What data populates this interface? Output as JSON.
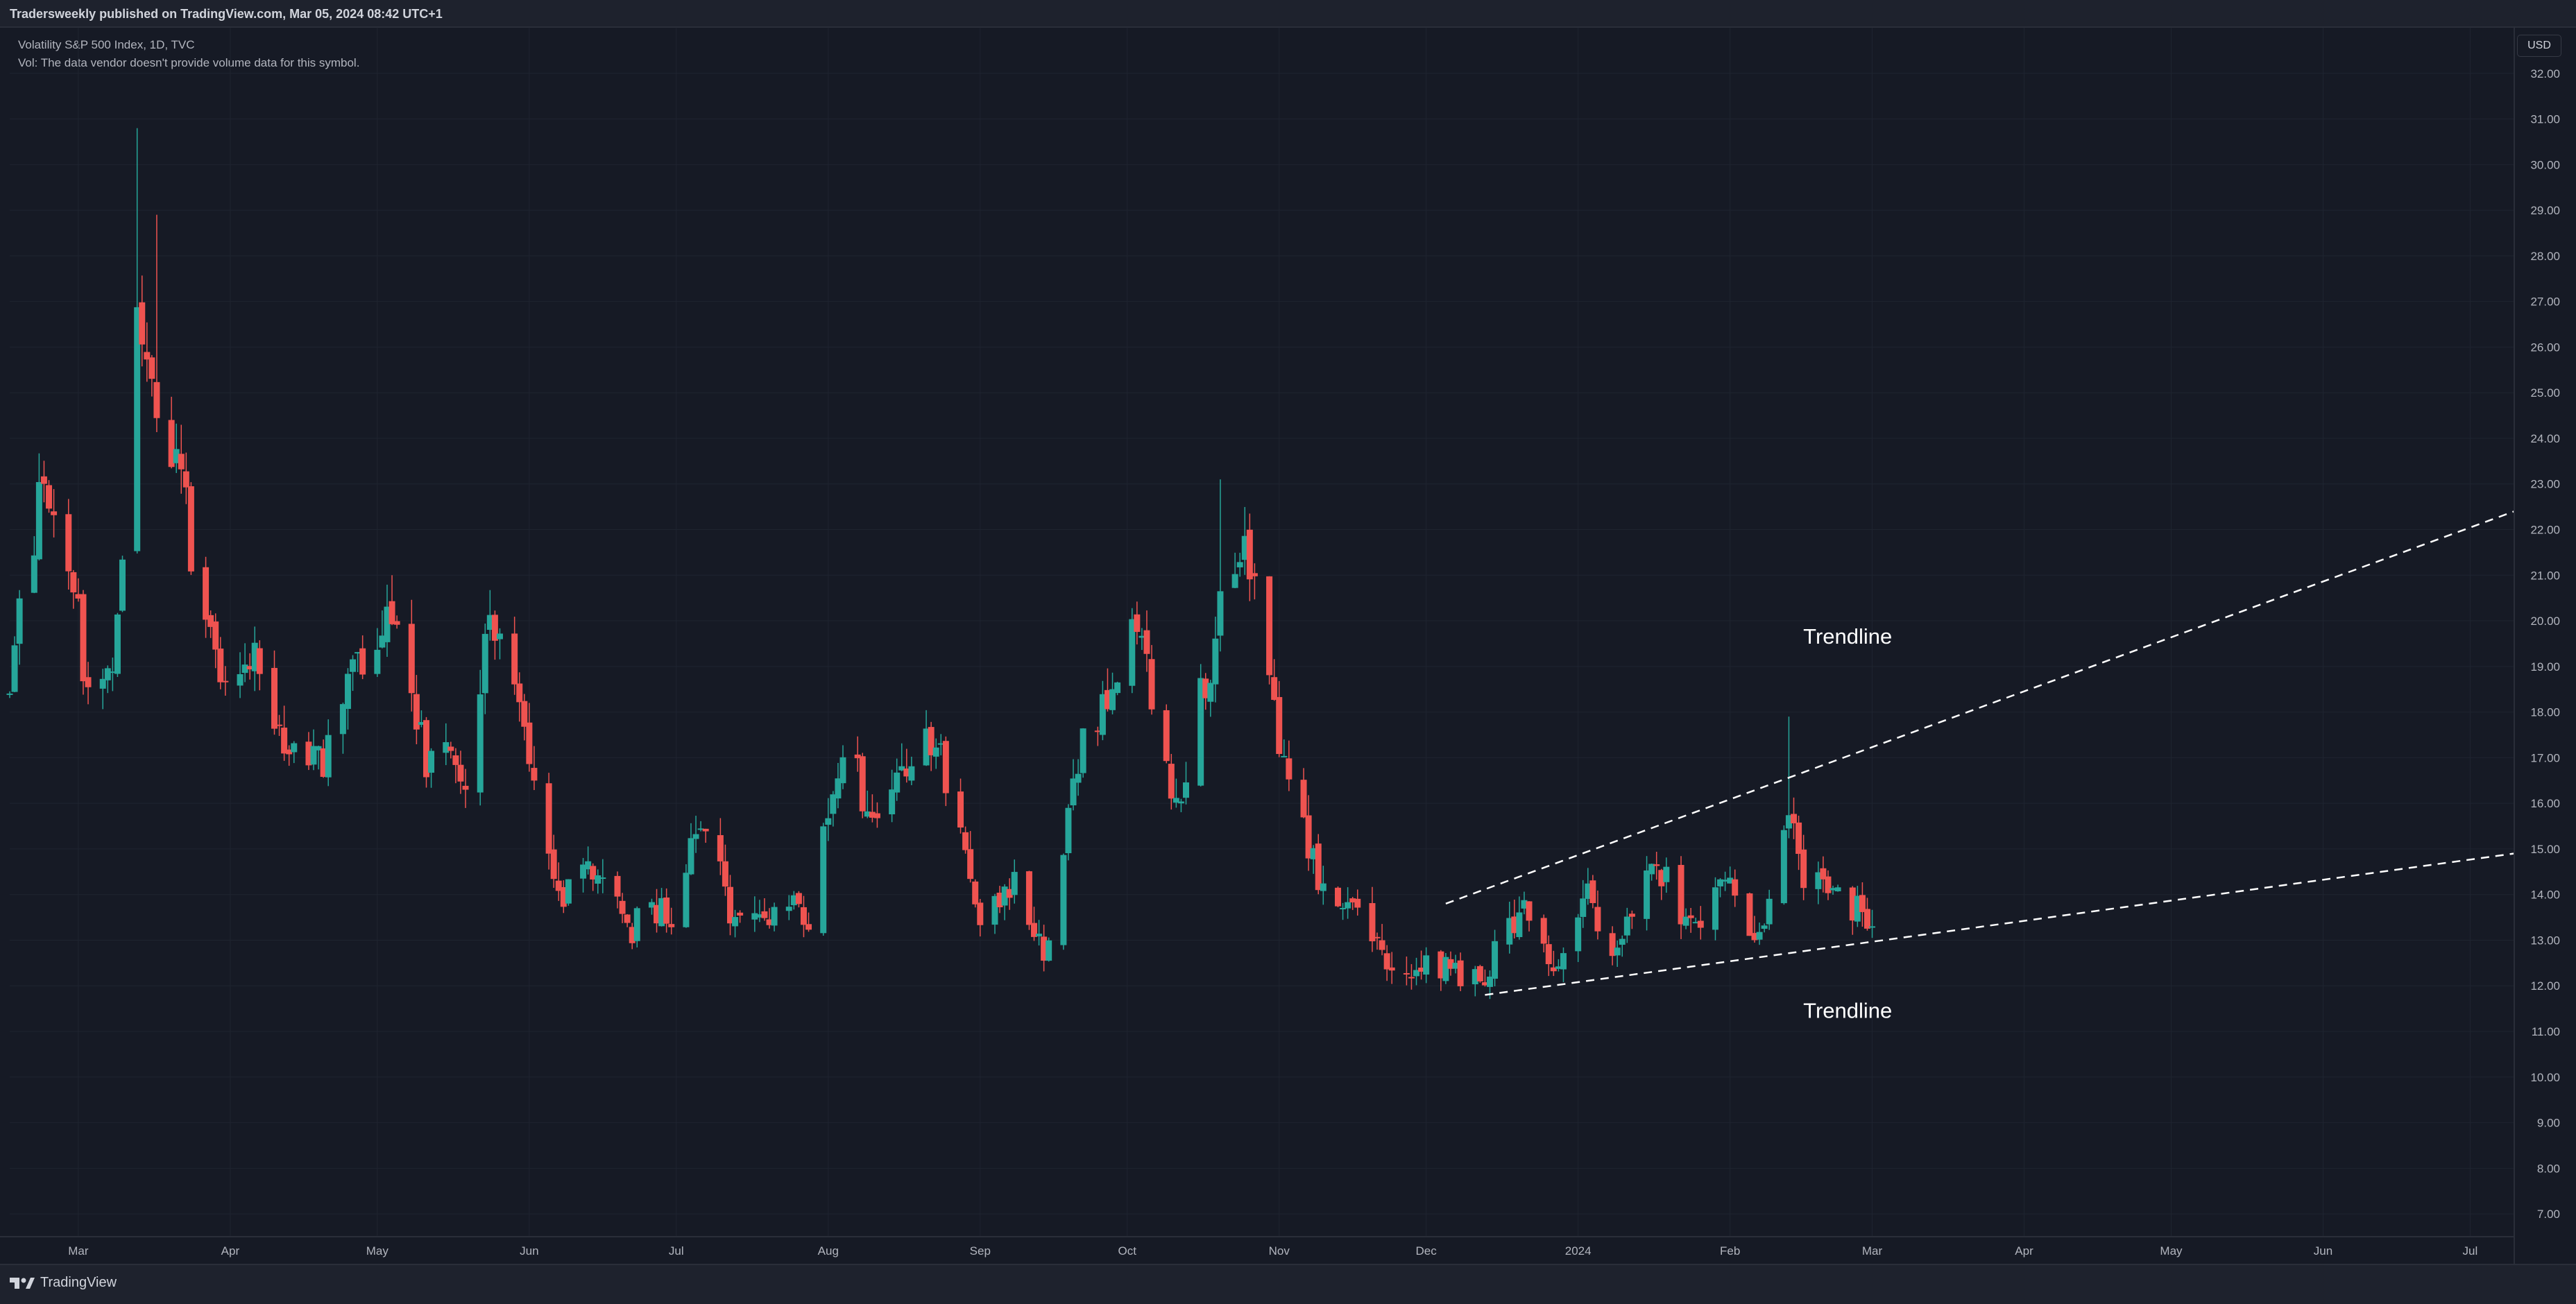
{
  "header": {
    "published": "Tradersweekly published on TradingView.com, Mar 05, 2024 08:42 UTC+1"
  },
  "legend": {
    "symbol": "Volatility S&P 500 Index, 1D, TVC",
    "vol_note": "Vol: The data vendor doesn't provide volume data for this symbol."
  },
  "currency": "USD",
  "footer": {
    "brand": "TradingView"
  },
  "colors": {
    "up": "#26a69a",
    "down": "#ef5350",
    "background": "#161a25",
    "grid": "#1f2430",
    "trendline": "#ffffff"
  },
  "chart_data": {
    "type": "candlestick",
    "ylim": [
      6.5,
      33
    ],
    "y_ticks": [
      "7.00",
      "8.00",
      "9.00",
      "10.00",
      "11.00",
      "12.00",
      "13.00",
      "14.00",
      "15.00",
      "16.00",
      "17.00",
      "18.00",
      "19.00",
      "20.00",
      "21.00",
      "22.00",
      "23.00",
      "24.00",
      "25.00",
      "26.00",
      "27.00",
      "28.00",
      "29.00",
      "30.00",
      "31.00",
      "32.00"
    ],
    "x_ticks": [
      {
        "label": "Mar",
        "date": "2023-03-01"
      },
      {
        "label": "Apr",
        "date": "2023-04-01"
      },
      {
        "label": "May",
        "date": "2023-05-01"
      },
      {
        "label": "Jun",
        "date": "2023-06-01"
      },
      {
        "label": "Jul",
        "date": "2023-07-01"
      },
      {
        "label": "Aug",
        "date": "2023-08-01"
      },
      {
        "label": "Sep",
        "date": "2023-09-01"
      },
      {
        "label": "Oct",
        "date": "2023-10-01"
      },
      {
        "label": "Nov",
        "date": "2023-11-01"
      },
      {
        "label": "Dec",
        "date": "2023-12-01"
      },
      {
        "label": "2024",
        "date": "2024-01-01"
      },
      {
        "label": "Feb",
        "date": "2024-02-01"
      },
      {
        "label": "Mar",
        "date": "2024-03-01"
      },
      {
        "label": "Apr",
        "date": "2024-04-01"
      },
      {
        "label": "May",
        "date": "2024-05-01"
      },
      {
        "label": "Jun",
        "date": "2024-06-01"
      },
      {
        "label": "Jul",
        "date": "2024-07-01"
      }
    ],
    "xlim": [
      "2023-02-15",
      "2024-07-10"
    ],
    "anchors": [
      {
        "date": "2023-02-15",
        "v": 18.5
      },
      {
        "date": "2023-02-21",
        "v": 22.8
      },
      {
        "date": "2023-02-28",
        "v": 20.7
      },
      {
        "date": "2023-03-03",
        "v": 18.5
      },
      {
        "date": "2023-03-08",
        "v": 19.0
      },
      {
        "date": "2023-03-13",
        "v": 26.5
      },
      {
        "date": "2023-03-16",
        "v": 25.0
      },
      {
        "date": "2023-03-20",
        "v": 24.0
      },
      {
        "date": "2023-03-24",
        "v": 21.7
      },
      {
        "date": "2023-03-29",
        "v": 19.0
      },
      {
        "date": "2023-04-05",
        "v": 19.2
      },
      {
        "date": "2023-04-14",
        "v": 17.1
      },
      {
        "date": "2023-04-20",
        "v": 16.8
      },
      {
        "date": "2023-04-26",
        "v": 18.8
      },
      {
        "date": "2023-05-04",
        "v": 20.1
      },
      {
        "date": "2023-05-11",
        "v": 16.9
      },
      {
        "date": "2023-05-19",
        "v": 16.8
      },
      {
        "date": "2023-05-24",
        "v": 20.0
      },
      {
        "date": "2023-05-31",
        "v": 17.9
      },
      {
        "date": "2023-06-07",
        "v": 13.9
      },
      {
        "date": "2023-06-15",
        "v": 14.5
      },
      {
        "date": "2023-06-22",
        "v": 13.3
      },
      {
        "date": "2023-06-30",
        "v": 13.6
      },
      {
        "date": "2023-07-06",
        "v": 15.4
      },
      {
        "date": "2023-07-13",
        "v": 13.5
      },
      {
        "date": "2023-07-21",
        "v": 13.6
      },
      {
        "date": "2023-07-28",
        "v": 13.6
      },
      {
        "date": "2023-08-04",
        "v": 17.1
      },
      {
        "date": "2023-08-11",
        "v": 15.7
      },
      {
        "date": "2023-08-18",
        "v": 17.3
      },
      {
        "date": "2023-08-24",
        "v": 17.2
      },
      {
        "date": "2023-08-31",
        "v": 13.6
      },
      {
        "date": "2023-09-08",
        "v": 14.1
      },
      {
        "date": "2023-09-14",
        "v": 12.8
      },
      {
        "date": "2023-09-22",
        "v": 17.2
      },
      {
        "date": "2023-10-03",
        "v": 19.8
      },
      {
        "date": "2023-10-11",
        "v": 15.9
      },
      {
        "date": "2023-10-18",
        "v": 19.2
      },
      {
        "date": "2023-10-23",
        "v": 21.4
      },
      {
        "date": "2023-10-27",
        "v": 21.3
      },
      {
        "date": "2023-11-01",
        "v": 16.9
      },
      {
        "date": "2023-11-10",
        "v": 14.2
      },
      {
        "date": "2023-11-17",
        "v": 13.8
      },
      {
        "date": "2023-11-24",
        "v": 12.5
      },
      {
        "date": "2023-12-01",
        "v": 12.6
      },
      {
        "date": "2023-12-07",
        "v": 12.2
      },
      {
        "date": "2023-12-13",
        "v": 12.2
      },
      {
        "date": "2023-12-20",
        "v": 13.7
      },
      {
        "date": "2023-12-27",
        "v": 12.4
      },
      {
        "date": "2024-01-03",
        "v": 14.0
      },
      {
        "date": "2024-01-09",
        "v": 12.7
      },
      {
        "date": "2024-01-17",
        "v": 14.8
      },
      {
        "date": "2024-01-24",
        "v": 13.1
      },
      {
        "date": "2024-01-31",
        "v": 14.3
      },
      {
        "date": "2024-02-07",
        "v": 12.8
      },
      {
        "date": "2024-02-13",
        "v": 15.8
      },
      {
        "date": "2024-02-16",
        "v": 14.2
      },
      {
        "date": "2024-02-22",
        "v": 14.5
      },
      {
        "date": "2024-02-28",
        "v": 13.4
      },
      {
        "date": "2024-03-01",
        "v": 13.1
      }
    ],
    "spikes": [
      {
        "date": "2023-03-13",
        "high": 30.8
      },
      {
        "date": "2023-03-17",
        "high": 28.9
      },
      {
        "date": "2023-10-20",
        "high": 23.1
      },
      {
        "date": "2024-02-13",
        "high": 17.9
      }
    ],
    "trendlines": [
      {
        "label": "Trendline",
        "from": {
          "date": "2023-12-05",
          "v": 13.8
        },
        "to": {
          "date": "2024-07-10",
          "v": 22.4
        }
      },
      {
        "label": "Trendline",
        "from": {
          "date": "2023-12-13",
          "v": 11.8
        },
        "to": {
          "date": "2024-07-10",
          "v": 14.9
        }
      }
    ],
    "annotations": [
      {
        "text": "Trendline",
        "date": "2024-02-25",
        "v": 19.5
      },
      {
        "text": "Trendline",
        "date": "2024-02-25",
        "v": 11.3
      }
    ]
  }
}
